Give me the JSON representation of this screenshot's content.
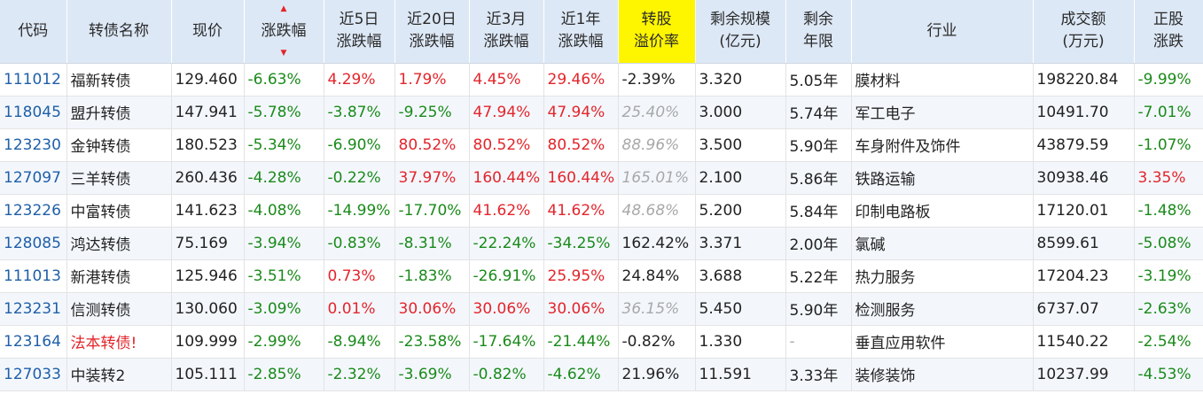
{
  "columns": [
    {
      "label": "代码"
    },
    {
      "label": "转债名称"
    },
    {
      "label": "现价"
    },
    {
      "label": "涨跌幅"
    },
    {
      "label": "近5日\n涨跌幅"
    },
    {
      "label": "近20日\n涨跌幅"
    },
    {
      "label": "近3月\n涨跌幅"
    },
    {
      "label": "近1年\n涨跌幅"
    },
    {
      "label": "转股\n溢价率"
    },
    {
      "label": "剩余规模\n(亿元)"
    },
    {
      "label": "剩余\n年限"
    },
    {
      "label": "行业"
    },
    {
      "label": "成交额\n(万元)"
    },
    {
      "label": "正股\n涨跌"
    }
  ],
  "sort_indicator": {
    "up": "▲",
    "down": "▼"
  },
  "rows": [
    {
      "code": "111012",
      "name": "福新转债",
      "price": "129.460",
      "chg": "-6.63%",
      "d5": "4.29%",
      "d20": "1.79%",
      "m3": "4.45%",
      "y1": "29.46%",
      "premium": "-2.39%",
      "scale": "3.320",
      "years": "5.05年",
      "industry": "膜材料",
      "amount": "198220.84",
      "stock": "-9.99%"
    },
    {
      "code": "118045",
      "name": "盟升转债",
      "price": "147.941",
      "chg": "-5.78%",
      "d5": "-3.87%",
      "d20": "-9.25%",
      "m3": "47.94%",
      "y1": "47.94%",
      "premium": "25.40%",
      "scale": "3.000",
      "years": "5.74年",
      "industry": "军工电子",
      "amount": "10491.70",
      "stock": "-7.01%"
    },
    {
      "code": "123230",
      "name": "金钟转债",
      "price": "180.523",
      "chg": "-5.34%",
      "d5": "-6.90%",
      "d20": "80.52%",
      "m3": "80.52%",
      "y1": "80.52%",
      "premium": "88.96%",
      "scale": "3.500",
      "years": "5.90年",
      "industry": "车身附件及饰件",
      "amount": "43879.59",
      "stock": "-1.07%"
    },
    {
      "code": "127097",
      "name": "三羊转债",
      "price": "260.436",
      "chg": "-4.28%",
      "d5": "-0.22%",
      "d20": "37.97%",
      "m3": "160.44%",
      "y1": "160.44%",
      "premium": "165.01%",
      "scale": "2.100",
      "years": "5.86年",
      "industry": "铁路运输",
      "amount": "30938.46",
      "stock": "3.35%"
    },
    {
      "code": "123226",
      "name": "中富转债",
      "price": "141.623",
      "chg": "-4.08%",
      "d5": "-14.99%",
      "d20": "-17.70%",
      "m3": "41.62%",
      "y1": "41.62%",
      "premium": "48.68%",
      "scale": "5.200",
      "years": "5.84年",
      "industry": "印制电路板",
      "amount": "17120.01",
      "stock": "-1.48%"
    },
    {
      "code": "128085",
      "name": "鸿达转债",
      "price": "75.169",
      "chg": "-3.94%",
      "d5": "-0.83%",
      "d20": "-8.31%",
      "m3": "-22.24%",
      "y1": "-34.25%",
      "premium": "162.42%",
      "scale": "3.371",
      "years": "2.00年",
      "industry": "氯碱",
      "amount": "8599.61",
      "stock": "-5.08%"
    },
    {
      "code": "111013",
      "name": "新港转债",
      "price": "125.946",
      "chg": "-3.51%",
      "d5": "0.73%",
      "d20": "-1.83%",
      "m3": "-26.91%",
      "y1": "25.95%",
      "premium": "24.84%",
      "scale": "3.688",
      "years": "5.22年",
      "industry": "热力服务",
      "amount": "17204.23",
      "stock": "-3.19%"
    },
    {
      "code": "123231",
      "name": "信测转债",
      "price": "130.060",
      "chg": "-3.09%",
      "d5": "0.01%",
      "d20": "30.06%",
      "m3": "30.06%",
      "y1": "30.06%",
      "premium": "36.15%",
      "scale": "5.450",
      "years": "5.90年",
      "industry": "检测服务",
      "amount": "6737.07",
      "stock": "-2.63%"
    },
    {
      "code": "123164",
      "name": "法本转债!",
      "price": "109.999",
      "chg": "-2.99%",
      "d5": "-8.94%",
      "d20": "-23.58%",
      "m3": "-17.64%",
      "y1": "-21.44%",
      "premium": "-0.82%",
      "scale": "1.330",
      "years": "-",
      "industry": "垂直应用软件",
      "amount": "11540.22",
      "stock": "-2.54%"
    },
    {
      "code": "127033",
      "name": "中装转2",
      "price": "105.111",
      "chg": "-2.85%",
      "d5": "-2.32%",
      "d20": "-3.69%",
      "m3": "-0.82%",
      "y1": "-4.62%",
      "premium": "21.96%",
      "scale": "11.591",
      "years": "3.33年",
      "industry": "装修装饰",
      "amount": "10237.99",
      "stock": "-4.53%"
    }
  ],
  "row_styles": {
    "name_red_rows": [
      8
    ],
    "gray_premium_rows": [
      1,
      2,
      3,
      4,
      7
    ],
    "dark_years_rows": [
      8
    ]
  },
  "colors": {
    "up": "#e3252b",
    "down": "#1a8a1a",
    "code": "#1f5fa8",
    "header_bg": "#dde8f6",
    "highlight": "#fef500"
  }
}
